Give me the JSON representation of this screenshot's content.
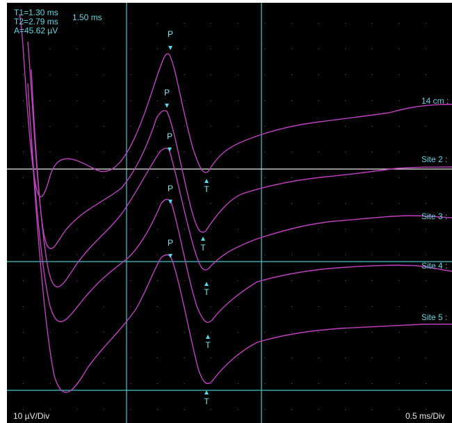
{
  "readout": {
    "t1": "T1=1.30 ms",
    "t2": "T2=2.79 ms",
    "amplitude": "A=45.62 µV",
    "delta": "1.50 ms"
  },
  "scales": {
    "sensitivity": "10 µV/Div",
    "sweep": "0.5 ms/Div"
  },
  "traces": [
    {
      "label": "14 cm :",
      "peak_marker": "P",
      "trough_marker": "T"
    },
    {
      "label": "Site 2 :",
      "peak_marker": "P",
      "trough_marker": "T"
    },
    {
      "label": "Site 3 :",
      "peak_marker": "P",
      "trough_marker": "T"
    },
    {
      "label": "Site 4 :",
      "peak_marker": "P",
      "trough_marker": "T"
    },
    {
      "label": "Site 5 :",
      "peak_marker": "P",
      "trough_marker": "T"
    }
  ],
  "colors": {
    "background": "#000000",
    "trace": "#c040c0",
    "cursor": "#3fc8cc",
    "reference_line": "#e8e8e8",
    "text": "#5fd7e6",
    "grid_dot": "#6a6a6a"
  }
}
